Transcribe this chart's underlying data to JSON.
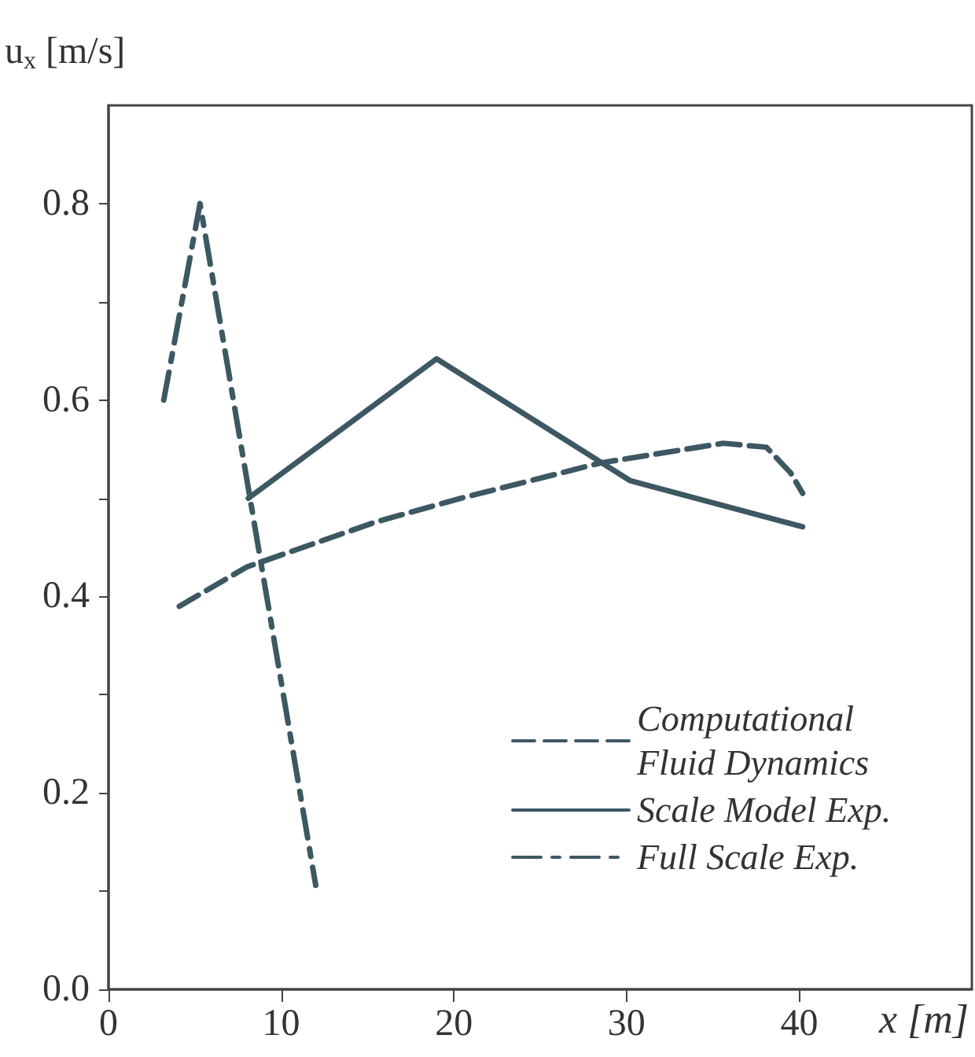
{
  "chart_data": {
    "type": "line",
    "xlabel": "x [m]",
    "ylabel": "u$_{x}$ [m/s]",
    "xlim": [
      0,
      50
    ],
    "xticks": [
      0,
      10,
      20,
      30,
      40
    ],
    "ylim": [
      0,
      0.9
    ],
    "yticks": [
      {
        "value": 0,
        "label": "0.0"
      },
      {
        "value": 0.1,
        "label": null
      },
      0.2,
      {
        "value": 0.3,
        "label": null
      },
      0.4,
      {
        "value": 0.5,
        "label": null
      },
      0.6,
      {
        "value": 0.7,
        "label": null
      },
      0.8
    ],
    "grid": false,
    "legend": "bottom right",
    "marker": "none",
    "series": [
      {
        "name": "Computational Fluid Dynamics",
        "color": "#3d5863",
        "line_style": "dashed",
        "x": [
          4.1,
          8.0,
          15.5,
          20.4,
          28.5,
          35.6,
          38.1,
          39.5,
          40.2
        ],
        "values": [
          0.39,
          0.43,
          0.476,
          0.5,
          0.536,
          0.556,
          0.552,
          0.526,
          0.505
        ]
      },
      {
        "name": "Scale Model Exp.",
        "color": "#3d5863",
        "line_style": "solid",
        "x": [
          8.1,
          19.0,
          30.2,
          40.2
        ],
        "values": [
          0.5,
          0.642,
          0.518,
          0.471
        ]
      },
      {
        "name": "Full Scale Exp.",
        "color": "#3d5863",
        "line_style": "dashdot",
        "x": [
          3.2,
          5.3,
          12.0
        ],
        "values": [
          0.6,
          0.8,
          0.106
        ]
      }
    ]
  }
}
